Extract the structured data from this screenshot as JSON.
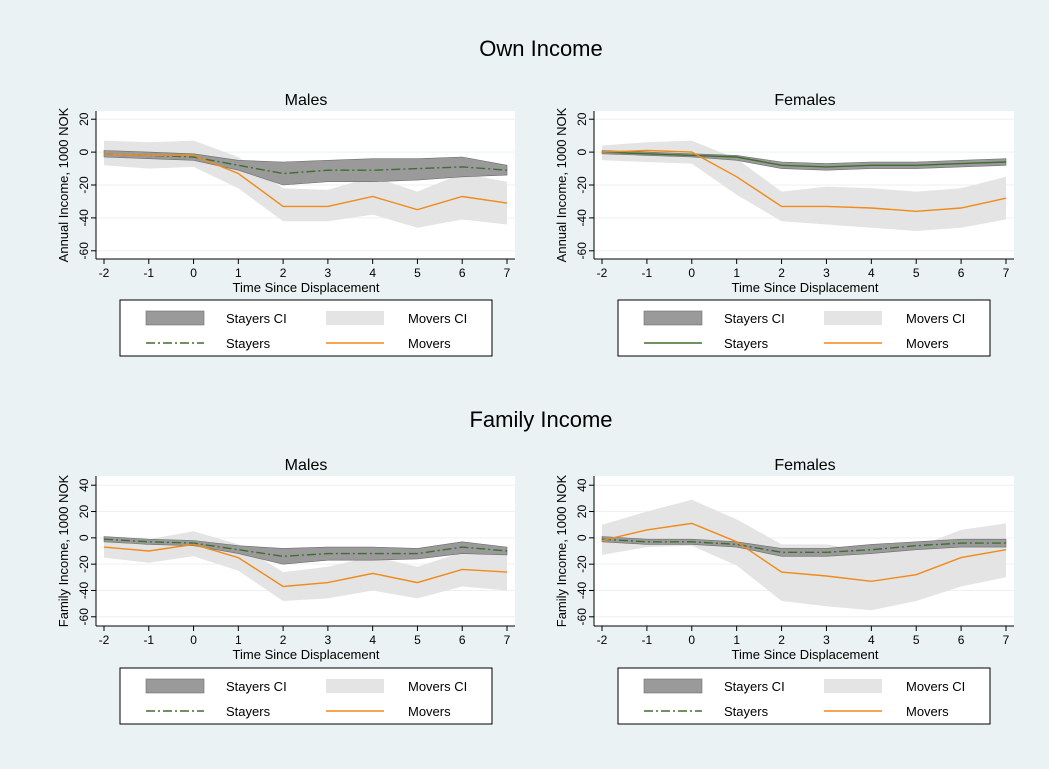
{
  "colors": {
    "figure_bg": "#eaf2f3",
    "plot_bg": "#ffffff",
    "grid": "#eaf2f3",
    "stayers_ci_fill": "#9a9a9a",
    "stayers_ci_stroke": "#6e6e6e",
    "movers_ci_fill": "#e4e4e4",
    "stayers_line": "#3f6f2f",
    "movers_line": "#f08a19",
    "title": "#1a476f",
    "legend_bg": "#ffffff"
  },
  "sections": [
    {
      "title": "Own Income"
    },
    {
      "title": "Family Income"
    }
  ],
  "legend": {
    "stayers_ci": "Stayers CI",
    "movers_ci": "Movers CI",
    "stayers": "Stayers",
    "movers": "Movers"
  },
  "chart_data": [
    {
      "type": "line",
      "title": "Males",
      "xlabel": "Time Since Displacement",
      "ylabel": "Annual Income, 1000 NOK",
      "x": [
        -2,
        -1,
        0,
        1,
        2,
        3,
        4,
        5,
        6,
        7
      ],
      "xlim": [
        -2,
        7
      ],
      "ylim": [
        -65,
        25
      ],
      "yticks": [
        20,
        0,
        -20,
        -40,
        -60
      ],
      "stayers_dashed": true,
      "series": [
        {
          "name": "Stayers",
          "values": [
            -1,
            -2,
            -3,
            -8,
            -13,
            -11,
            -11,
            -10,
            -9,
            -11
          ]
        },
        {
          "name": "Movers",
          "values": [
            -1,
            -2,
            -2,
            -13,
            -33,
            -33,
            -27,
            -35,
            -27,
            -31
          ]
        }
      ],
      "ci": [
        {
          "name": "Stayers CI",
          "lower": [
            -3,
            -4,
            -5,
            -11,
            -20,
            -18,
            -18,
            -17,
            -15,
            -14
          ],
          "upper": [
            1,
            0,
            -1,
            -5,
            -6,
            -5,
            -4,
            -4,
            -3,
            -8
          ]
        },
        {
          "name": "Movers CI",
          "lower": [
            -8,
            -10,
            -9,
            -22,
            -42,
            -42,
            -38,
            -46,
            -41,
            -44
          ],
          "upper": [
            7,
            6,
            7,
            -3,
            -22,
            -23,
            -15,
            -24,
            -13,
            -18
          ]
        }
      ]
    },
    {
      "type": "line",
      "title": "Females",
      "xlabel": "Time Since Displacement",
      "ylabel": "Annual Income, 1000 NOK",
      "x": [
        -2,
        -1,
        0,
        1,
        2,
        3,
        4,
        5,
        6,
        7
      ],
      "xlim": [
        -2,
        7
      ],
      "ylim": [
        -65,
        25
      ],
      "yticks": [
        20,
        0,
        -20,
        -40,
        -60
      ],
      "stayers_dashed": false,
      "series": [
        {
          "name": "Stayers",
          "values": [
            0,
            -1,
            -2,
            -3,
            -8,
            -9,
            -8,
            -8,
            -7,
            -6
          ]
        },
        {
          "name": "Movers",
          "values": [
            0,
            1,
            0,
            -15,
            -33,
            -33,
            -34,
            -36,
            -34,
            -28
          ]
        }
      ],
      "ci": [
        {
          "name": "Stayers CI",
          "lower": [
            -1,
            -2,
            -3,
            -5,
            -10,
            -11,
            -10,
            -10,
            -9,
            -8
          ],
          "upper": [
            1,
            0,
            -1,
            -2,
            -6,
            -7,
            -6,
            -6,
            -5,
            -4
          ]
        },
        {
          "name": "Movers CI",
          "lower": [
            -5,
            -6,
            -7,
            -26,
            -42,
            -44,
            -46,
            -48,
            -46,
            -41
          ],
          "upper": [
            4,
            6,
            7,
            -4,
            -24,
            -21,
            -22,
            -24,
            -22,
            -15
          ]
        }
      ]
    },
    {
      "type": "line",
      "title": "Males",
      "xlabel": "Time Since Displacement",
      "ylabel": "Family Income, 1000 NOK",
      "x": [
        -2,
        -1,
        0,
        1,
        2,
        3,
        4,
        5,
        6,
        7
      ],
      "xlim": [
        -2,
        7
      ],
      "ylim": [
        -67,
        47
      ],
      "yticks": [
        40,
        20,
        0,
        -20,
        -40,
        -60
      ],
      "stayers_dashed": true,
      "series": [
        {
          "name": "Stayers",
          "values": [
            -1,
            -3,
            -4,
            -9,
            -14,
            -12,
            -12,
            -12,
            -7,
            -10
          ]
        },
        {
          "name": "Movers",
          "values": [
            -7,
            -10,
            -5,
            -15,
            -37,
            -34,
            -27,
            -34,
            -24,
            -26
          ]
        }
      ],
      "ci": [
        {
          "name": "Stayers CI",
          "lower": [
            -3,
            -5,
            -6,
            -12,
            -20,
            -17,
            -17,
            -16,
            -12,
            -13
          ],
          "upper": [
            1,
            -1,
            -2,
            -6,
            -8,
            -7,
            -7,
            -8,
            -3,
            -7
          ]
        },
        {
          "name": "Movers CI",
          "lower": [
            -15,
            -19,
            -14,
            -25,
            -48,
            -46,
            -40,
            -46,
            -37,
            -40
          ],
          "upper": [
            1,
            -1,
            5,
            -5,
            -26,
            -22,
            -14,
            -22,
            -11,
            -12
          ]
        }
      ]
    },
    {
      "type": "line",
      "title": "Females",
      "xlabel": "Time Since Displacement",
      "ylabel": "Family Income, 1000 NOK",
      "x": [
        -2,
        -1,
        0,
        1,
        2,
        3,
        4,
        5,
        6,
        7
      ],
      "xlim": [
        -2,
        7
      ],
      "ylim": [
        -67,
        47
      ],
      "yticks": [
        40,
        20,
        0,
        -20,
        -40,
        -60
      ],
      "stayers_dashed": true,
      "series": [
        {
          "name": "Stayers",
          "values": [
            -1,
            -3,
            -3,
            -5,
            -11,
            -11,
            -9,
            -6,
            -4,
            -4
          ]
        },
        {
          "name": "Movers",
          "values": [
            -2,
            6,
            11,
            -3,
            -26,
            -29,
            -33,
            -28,
            -15,
            -9
          ]
        }
      ],
      "ci": [
        {
          "name": "Stayers CI",
          "lower": [
            -3,
            -5,
            -5,
            -7,
            -14,
            -14,
            -12,
            -9,
            -7,
            -7
          ],
          "upper": [
            1,
            -1,
            -1,
            -3,
            -8,
            -8,
            -5,
            -3,
            -1,
            -1
          ]
        },
        {
          "name": "Movers CI",
          "lower": [
            -13,
            -7,
            -6,
            -21,
            -48,
            -52,
            -55,
            -48,
            -37,
            -30
          ],
          "upper": [
            10,
            20,
            29,
            14,
            -5,
            -5,
            -11,
            -7,
            6,
            11
          ]
        }
      ]
    }
  ]
}
